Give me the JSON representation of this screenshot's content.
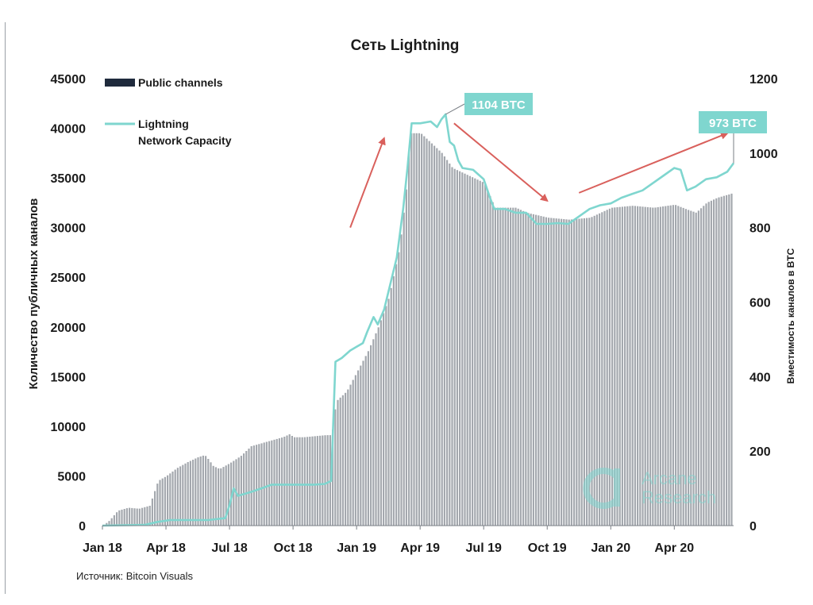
{
  "chart_data": {
    "type": "bar+line",
    "title": "Сеть Lightning",
    "ylabel_left": "Количество публичных каналов",
    "ylabel_right": "Вместимость каналов в BTC",
    "ylim_left": [
      0,
      45000
    ],
    "ylim_right": [
      0,
      1200
    ],
    "yticks_left": [
      "0",
      "5000",
      "10000",
      "15000",
      "20000",
      "25000",
      "30000",
      "35000",
      "40000",
      "45000"
    ],
    "yticks_right": [
      "0",
      "200",
      "400",
      "600",
      "800",
      "1000",
      "1200"
    ],
    "x_tick_labels": [
      "Jan 18",
      "Apr 18",
      "Jul 18",
      "Oct 18",
      "Jan 19",
      "Apr 19",
      "Jul 19",
      "Oct 19",
      "Jan 20",
      "Apr 20"
    ],
    "x_tick_months": [
      0,
      3,
      6,
      9,
      12,
      15,
      18,
      21,
      24,
      27
    ],
    "x_range_months": [
      0,
      29.8
    ],
    "legend": [
      {
        "label": "Public channels",
        "color": "#1f2a3c"
      },
      {
        "label": "Lightning\nNetwork Capacity",
        "color": "#7fd6cf"
      }
    ],
    "series_public_channels": {
      "name": "Public channels",
      "color": "#a4a8ae",
      "points": [
        [
          0,
          0
        ],
        [
          0.3,
          500
        ],
        [
          0.7,
          1500
        ],
        [
          1.2,
          1800
        ],
        [
          1.7,
          1700
        ],
        [
          2.2,
          2000
        ],
        [
          2.6,
          4500
        ],
        [
          3.0,
          5000
        ],
        [
          3.5,
          5800
        ],
        [
          4.0,
          6400
        ],
        [
          4.5,
          6900
        ],
        [
          4.8,
          7100
        ],
        [
          5.0,
          6600
        ],
        [
          5.2,
          6000
        ],
        [
          5.5,
          5700
        ],
        [
          6.0,
          6300
        ],
        [
          6.5,
          7000
        ],
        [
          7.0,
          8000
        ],
        [
          7.5,
          8300
        ],
        [
          8.0,
          8600
        ],
        [
          8.5,
          8900
        ],
        [
          8.8,
          9200
        ],
        [
          9.0,
          8900
        ],
        [
          9.5,
          8900
        ],
        [
          10.0,
          9000
        ],
        [
          10.5,
          9100
        ],
        [
          10.8,
          9100
        ],
        [
          11.0,
          12500
        ],
        [
          11.5,
          13500
        ],
        [
          12.0,
          15500
        ],
        [
          12.5,
          17500
        ],
        [
          13.0,
          20000
        ],
        [
          13.5,
          23000
        ],
        [
          14.0,
          28000
        ],
        [
          14.3,
          33500
        ],
        [
          14.5,
          39500
        ],
        [
          15.0,
          39500
        ],
        [
          15.5,
          38500
        ],
        [
          16.0,
          37500
        ],
        [
          16.5,
          36000
        ],
        [
          17.0,
          35500
        ],
        [
          17.5,
          35000
        ],
        [
          18.0,
          34500
        ],
        [
          18.5,
          32000
        ],
        [
          19.0,
          32000
        ],
        [
          19.5,
          32000
        ],
        [
          20.0,
          31500
        ],
        [
          21.0,
          31000
        ],
        [
          22.0,
          30800
        ],
        [
          23.0,
          31000
        ],
        [
          24.0,
          32000
        ],
        [
          25.0,
          32200
        ],
        [
          26.0,
          32000
        ],
        [
          27.0,
          32300
        ],
        [
          27.6,
          31800
        ],
        [
          28.0,
          31500
        ],
        [
          28.5,
          32500
        ],
        [
          29.0,
          33000
        ],
        [
          29.8,
          33500
        ]
      ]
    },
    "series_capacity": {
      "name": "Lightning Network Capacity",
      "unit": "BTC",
      "color": "#7fd6cf",
      "points": [
        [
          0,
          0
        ],
        [
          2.0,
          2
        ],
        [
          2.6,
          10
        ],
        [
          3.2,
          15
        ],
        [
          4.0,
          15
        ],
        [
          5.0,
          15
        ],
        [
          5.8,
          20
        ],
        [
          6.0,
          55
        ],
        [
          6.2,
          100
        ],
        [
          6.4,
          80
        ],
        [
          6.7,
          85
        ],
        [
          7.0,
          90
        ],
        [
          7.5,
          100
        ],
        [
          8.0,
          110
        ],
        [
          8.5,
          110
        ],
        [
          9.0,
          110
        ],
        [
          9.5,
          110
        ],
        [
          10.0,
          110
        ],
        [
          10.5,
          112
        ],
        [
          10.8,
          120
        ],
        [
          11.0,
          440
        ],
        [
          11.3,
          450
        ],
        [
          11.7,
          470
        ],
        [
          12.0,
          480
        ],
        [
          12.3,
          490
        ],
        [
          12.5,
          520
        ],
        [
          12.8,
          560
        ],
        [
          13.0,
          540
        ],
        [
          13.3,
          580
        ],
        [
          13.6,
          650
        ],
        [
          13.9,
          720
        ],
        [
          14.2,
          850
        ],
        [
          14.4,
          960
        ],
        [
          14.6,
          1080
        ],
        [
          15.0,
          1080
        ],
        [
          15.5,
          1085
        ],
        [
          15.8,
          1070
        ],
        [
          16.0,
          1090
        ],
        [
          16.2,
          1104
        ],
        [
          16.4,
          1030
        ],
        [
          16.6,
          1020
        ],
        [
          16.8,
          980
        ],
        [
          17.0,
          960
        ],
        [
          17.5,
          955
        ],
        [
          18.0,
          930
        ],
        [
          18.3,
          880
        ],
        [
          18.5,
          850
        ],
        [
          19.0,
          850
        ],
        [
          19.5,
          840
        ],
        [
          20.0,
          840
        ],
        [
          20.5,
          810
        ],
        [
          21.0,
          810
        ],
        [
          21.5,
          812
        ],
        [
          22.0,
          810
        ],
        [
          22.5,
          830
        ],
        [
          23.0,
          850
        ],
        [
          23.5,
          860
        ],
        [
          24.0,
          865
        ],
        [
          24.5,
          880
        ],
        [
          25.0,
          890
        ],
        [
          25.5,
          900
        ],
        [
          26.0,
          920
        ],
        [
          26.5,
          940
        ],
        [
          27.0,
          960
        ],
        [
          27.3,
          955
        ],
        [
          27.6,
          900
        ],
        [
          28.0,
          910
        ],
        [
          28.5,
          930
        ],
        [
          29.0,
          935
        ],
        [
          29.5,
          950
        ],
        [
          29.8,
          973
        ]
      ]
    },
    "annotations": [
      {
        "text": "1104 BTC",
        "month": 16.2,
        "value_btc": 1104
      },
      {
        "text": "973 BTC",
        "month": 29.8,
        "value_btc": 973
      }
    ],
    "trend_arrows": [
      {
        "from": [
          11.7,
          30000
        ],
        "to": [
          13.3,
          39000
        ]
      },
      {
        "from": [
          16.6,
          40500
        ],
        "to": [
          21.0,
          32700
        ]
      },
      {
        "from": [
          22.5,
          33500
        ],
        "to": [
          29.5,
          39500
        ]
      }
    ]
  },
  "watermark": {
    "line1": "Arcane",
    "line2": "Research"
  },
  "source": "Источник: Bitcoin Visuals"
}
